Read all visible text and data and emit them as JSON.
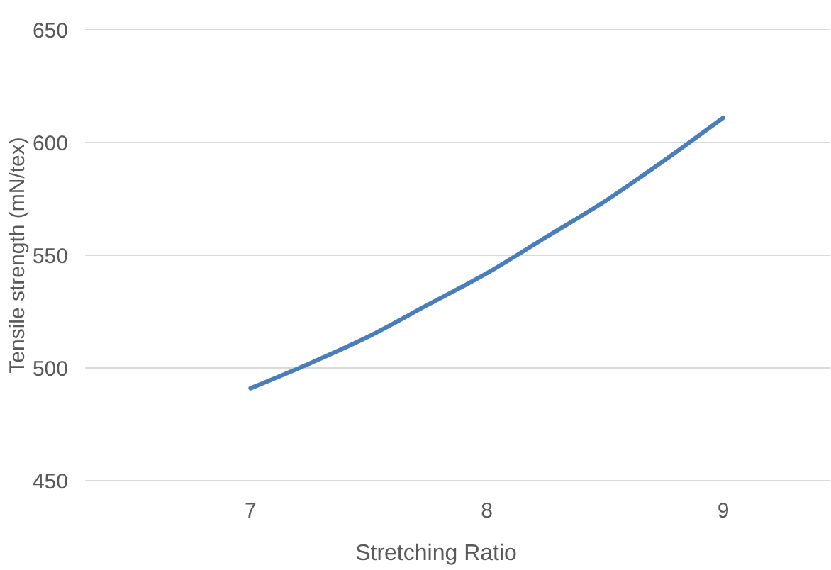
{
  "chart_data": {
    "type": "line",
    "xlabel": "Stretching Ratio",
    "ylabel": "Tensile strength (mN/tex)",
    "x": [
      7,
      7.25,
      7.5,
      7.75,
      8,
      8.25,
      8.5,
      8.75,
      9
    ],
    "series": [
      {
        "color": "#4a7ebb",
        "values": [
          491,
          502,
          514,
          528,
          542,
          558,
          574,
          592,
          611
        ]
      }
    ],
    "xlim": [
      6.3,
      9.45
    ],
    "xticks": [
      7,
      8,
      9
    ],
    "ylim": [
      450,
      650
    ],
    "yticks": [
      450,
      500,
      550,
      600,
      650
    ],
    "grid": "y"
  }
}
